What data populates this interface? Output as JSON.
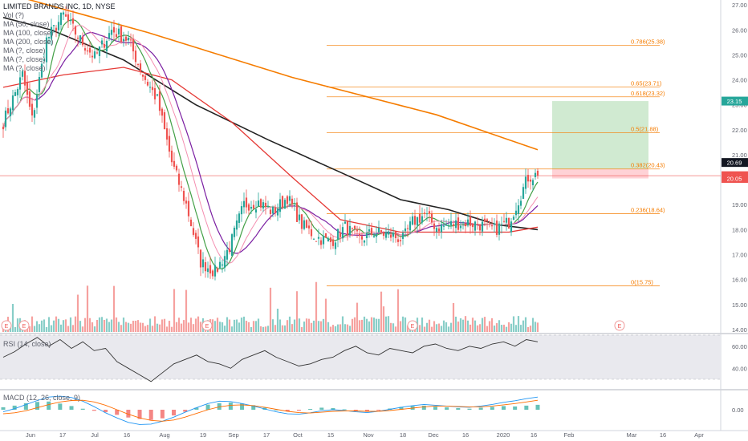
{
  "header": {
    "title": "LIMITED BRANDS INC, 1D, NYSE",
    "indicators": [
      "Vol (?)",
      "MA (50, close)",
      "MA (100, close)",
      "MA (200, close)",
      "MA (?, close)",
      "MA (?, close)",
      "MA (?, close)"
    ]
  },
  "rsi_label": "RSI (14, close)",
  "macd_label": "MACD (12, 26, close, 9)",
  "colors": {
    "up": "#26a69a",
    "down": "#ef5350",
    "ma_black": "#222222",
    "ma_orange": "#f57c00",
    "ma_red": "#e53935",
    "ma_purple": "#7b1fa2",
    "ma_green": "#43a047",
    "ma_pink": "#f48fb1",
    "fib": "#f57c00",
    "target": "#c8e6c9",
    "stop": "#ffcdd2",
    "rsi_bg": "#e9e9ee",
    "macd_line": "#2196f3",
    "signal_line": "#ff6d00"
  },
  "chart_data": {
    "type": "candlestick",
    "symbol": "LIMITED BRANDS INC",
    "interval": "1D",
    "exchange": "NYSE",
    "price_axis": [
      "27.00",
      "26.00",
      "25.00",
      "24.00",
      "23.00",
      "22.00",
      "21.00",
      "20.00",
      "19.00",
      "18.00",
      "17.00",
      "16.00",
      "15.00",
      "14.00"
    ],
    "ylim": [
      13.9,
      27.2
    ],
    "time_axis": [
      "Jun",
      "17",
      "Jul",
      "16",
      "Aug",
      "19",
      "Sep",
      "17",
      "Oct",
      "15",
      "Nov",
      "18",
      "Dec",
      "16",
      "2020",
      "16",
      "Feb",
      "Mar",
      "16",
      "Apr"
    ],
    "fib_levels": [
      {
        "label": "0.786(25.38)",
        "value": 25.38
      },
      {
        "label": "0.65(23.71)",
        "value": 23.71
      },
      {
        "label": "0.618(23.32)",
        "value": 23.32
      },
      {
        "label": "0.5(21.88)",
        "value": 21.88
      },
      {
        "label": "0.382(20.43)",
        "value": 20.43
      },
      {
        "label": "0.236(18.64)",
        "value": 18.64
      },
      {
        "label": "0(15.75)",
        "value": 15.75
      }
    ],
    "price_labels": [
      {
        "text": "23.15",
        "value": 23.15,
        "color": "#26a69a"
      },
      {
        "text": "20.69",
        "value": 20.69,
        "color": "#131722"
      },
      {
        "text": "20.16",
        "value": 20.16,
        "color": "#ef5350"
      },
      {
        "text": "20.05",
        "value": 20.05,
        "color": "#ef5350"
      }
    ],
    "current_price": 20.16,
    "position": {
      "entry": 20.43,
      "target": 23.15,
      "stop": 20.05
    },
    "anchors": [
      {
        "bar": 0,
        "price": 22.3
      },
      {
        "bar": 8,
        "price": 24.2
      },
      {
        "bar": 12,
        "price": 22.4
      },
      {
        "bar": 18,
        "price": 25.6
      },
      {
        "bar": 25,
        "price": 26.6
      },
      {
        "bar": 32,
        "price": 25.6
      },
      {
        "bar": 38,
        "price": 24.9
      },
      {
        "bar": 45,
        "price": 26.0
      },
      {
        "bar": 52,
        "price": 25.6
      },
      {
        "bar": 58,
        "price": 24.2
      },
      {
        "bar": 64,
        "price": 23.2
      },
      {
        "bar": 70,
        "price": 20.7
      },
      {
        "bar": 76,
        "price": 19.0
      },
      {
        "bar": 82,
        "price": 16.7
      },
      {
        "bar": 88,
        "price": 16.3
      },
      {
        "bar": 94,
        "price": 17.3
      },
      {
        "bar": 100,
        "price": 19.0
      },
      {
        "bar": 106,
        "price": 19.1
      },
      {
        "bar": 112,
        "price": 18.7
      },
      {
        "bar": 118,
        "price": 19.3
      },
      {
        "bar": 124,
        "price": 18.2
      },
      {
        "bar": 130,
        "price": 17.7
      },
      {
        "bar": 136,
        "price": 17.5
      },
      {
        "bar": 142,
        "price": 18.1
      },
      {
        "bar": 148,
        "price": 17.6
      },
      {
        "bar": 154,
        "price": 17.9
      },
      {
        "bar": 160,
        "price": 17.8
      },
      {
        "bar": 166,
        "price": 17.6
      },
      {
        "bar": 170,
        "price": 18.3
      },
      {
        "bar": 175,
        "price": 18.6
      },
      {
        "bar": 180,
        "price": 18.1
      },
      {
        "bar": 186,
        "price": 18.2
      },
      {
        "bar": 192,
        "price": 18.3
      },
      {
        "bar": 198,
        "price": 18.2
      },
      {
        "bar": 204,
        "price": 18.0
      },
      {
        "bar": 210,
        "price": 18.3
      },
      {
        "bar": 214,
        "price": 19.2
      },
      {
        "bar": 218,
        "price": 20.1
      },
      {
        "bar": 222,
        "price": 20.2
      }
    ],
    "ma_long": [
      {
        "bar": 0,
        "price": 27.5
      },
      {
        "bar": 60,
        "price": 25.9
      },
      {
        "bar": 120,
        "price": 24.1
      },
      {
        "bar": 180,
        "price": 22.6
      },
      {
        "bar": 222,
        "price": 21.2
      }
    ],
    "ma_mid": [
      {
        "bar": 0,
        "price": 26.5
      },
      {
        "bar": 20,
        "price": 26.0
      },
      {
        "bar": 50,
        "price": 24.8
      },
      {
        "bar": 80,
        "price": 23.0
      },
      {
        "bar": 110,
        "price": 21.6
      },
      {
        "bar": 140,
        "price": 20.3
      },
      {
        "bar": 165,
        "price": 19.2
      },
      {
        "bar": 185,
        "price": 18.8
      },
      {
        "bar": 205,
        "price": 18.2
      },
      {
        "bar": 222,
        "price": 18.0
      }
    ],
    "ma_red": [
      {
        "bar": 0,
        "price": 23.7
      },
      {
        "bar": 25,
        "price": 24.2
      },
      {
        "bar": 50,
        "price": 24.5
      },
      {
        "bar": 70,
        "price": 24.0
      },
      {
        "bar": 95,
        "price": 22.3
      },
      {
        "bar": 120,
        "price": 20.1
      },
      {
        "bar": 140,
        "price": 18.4
      },
      {
        "bar": 165,
        "price": 17.9
      },
      {
        "bar": 190,
        "price": 17.9
      },
      {
        "bar": 210,
        "price": 17.9
      },
      {
        "bar": 222,
        "price": 18.1
      }
    ],
    "rsi_axis": [
      "60.00",
      "40.00"
    ],
    "rsi_ylim": [
      22,
      70
    ],
    "rsi_values": [
      50,
      55,
      62,
      68,
      60,
      66,
      58,
      64,
      56,
      58,
      46,
      40,
      34,
      28,
      36,
      44,
      48,
      52,
      46,
      44,
      40,
      48,
      52,
      56,
      50,
      46,
      42,
      44,
      48,
      50,
      56,
      60,
      54,
      52,
      58,
      56,
      54,
      60,
      62,
      58,
      56,
      60,
      58,
      62,
      64,
      60,
      66,
      64
    ],
    "macd_axis": [
      "0.00"
    ],
    "macd_ylim": [
      -0.9,
      0.9
    ],
    "macd_hist": [
      0.12,
      0.2,
      0.32,
      0.38,
      0.4,
      0.3,
      0.18,
      0.05,
      -0.05,
      -0.12,
      -0.25,
      -0.38,
      -0.45,
      -0.5,
      -0.42,
      -0.28,
      -0.1,
      0.1,
      0.25,
      0.32,
      0.35,
      0.3,
      0.22,
      0.1,
      0.0,
      -0.08,
      -0.05,
      0.04,
      0.1,
      0.08,
      0.02,
      -0.06,
      -0.1,
      -0.04,
      0.06,
      0.14,
      0.18,
      0.2,
      0.15,
      0.12,
      0.08,
      0.05,
      0.1,
      0.14,
      0.18,
      0.16,
      0.2,
      0.24
    ],
    "macd_line": [
      -0.1,
      0.05,
      0.25,
      0.45,
      0.62,
      0.66,
      0.6,
      0.42,
      0.15,
      -0.15,
      -0.4,
      -0.62,
      -0.72,
      -0.7,
      -0.56,
      -0.36,
      -0.12,
      0.1,
      0.3,
      0.42,
      0.4,
      0.3,
      0.18,
      0.04,
      -0.1,
      -0.2,
      -0.22,
      -0.15,
      -0.05,
      0.0,
      -0.04,
      -0.1,
      -0.14,
      -0.08,
      0.02,
      0.12,
      0.2,
      0.26,
      0.22,
      0.18,
      0.14,
      0.12,
      0.18,
      0.26,
      0.36,
      0.44,
      0.54,
      0.62
    ],
    "macd_signal": [
      -0.2,
      -0.15,
      -0.05,
      0.1,
      0.25,
      0.38,
      0.45,
      0.46,
      0.38,
      0.22,
      0.0,
      -0.22,
      -0.4,
      -0.52,
      -0.56,
      -0.5,
      -0.36,
      -0.18,
      0.0,
      0.14,
      0.22,
      0.24,
      0.2,
      0.12,
      0.02,
      -0.08,
      -0.14,
      -0.16,
      -0.12,
      -0.08,
      -0.06,
      -0.06,
      -0.08,
      -0.08,
      -0.04,
      0.02,
      0.08,
      0.14,
      0.18,
      0.18,
      0.16,
      0.14,
      0.14,
      0.18,
      0.24,
      0.3,
      0.38,
      0.46
    ]
  }
}
